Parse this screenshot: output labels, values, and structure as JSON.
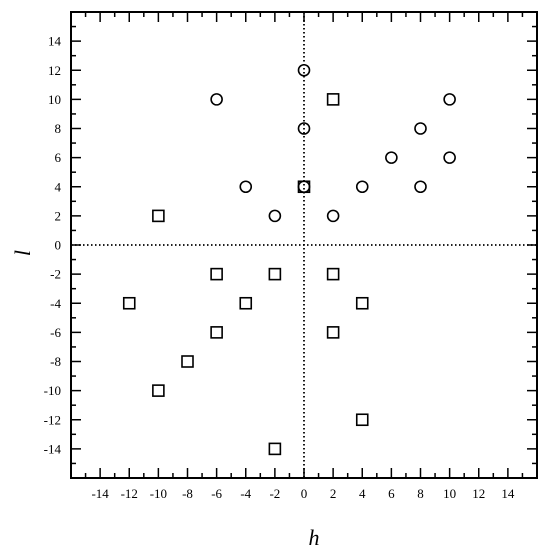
{
  "chart_data": {
    "type": "scatter",
    "title": "",
    "xlabel": "h",
    "ylabel": "l",
    "xlim": [
      -16,
      16
    ],
    "ylim": [
      -16,
      16
    ],
    "xticks": [
      -14,
      -12,
      -10,
      -8,
      -6,
      -4,
      -2,
      0,
      2,
      4,
      6,
      8,
      10,
      12,
      14
    ],
    "yticks": [
      -14,
      -12,
      -10,
      -8,
      -6,
      -4,
      -2,
      0,
      2,
      4,
      6,
      8,
      10,
      12,
      14
    ],
    "minor_tick_step": 1,
    "grid": false,
    "zero_lines": "dotted",
    "series": [
      {
        "marker": "circle",
        "points": [
          {
            "x": 0,
            "y": 12
          },
          {
            "x": 0,
            "y": 8
          },
          {
            "x": 0,
            "y": 4
          },
          {
            "x": -6,
            "y": 10
          },
          {
            "x": 10,
            "y": 10
          },
          {
            "x": 8,
            "y": 8
          },
          {
            "x": 6,
            "y": 6
          },
          {
            "x": 10,
            "y": 6
          },
          {
            "x": -4,
            "y": 4
          },
          {
            "x": 4,
            "y": 4
          },
          {
            "x": 8,
            "y": 4
          },
          {
            "x": -2,
            "y": 2
          },
          {
            "x": 2,
            "y": 2
          }
        ]
      },
      {
        "marker": "square",
        "points": [
          {
            "x": 2,
            "y": 10
          },
          {
            "x": 0,
            "y": 4
          },
          {
            "x": -10,
            "y": 2
          },
          {
            "x": -6,
            "y": -2
          },
          {
            "x": -2,
            "y": -2
          },
          {
            "x": 2,
            "y": -2
          },
          {
            "x": -12,
            "y": -4
          },
          {
            "x": -4,
            "y": -4
          },
          {
            "x": 4,
            "y": -4
          },
          {
            "x": -6,
            "y": -6
          },
          {
            "x": 2,
            "y": -6
          },
          {
            "x": -8,
            "y": -8
          },
          {
            "x": -10,
            "y": -10
          },
          {
            "x": 4,
            "y": -12
          },
          {
            "x": -2,
            "y": -14
          }
        ]
      }
    ]
  }
}
